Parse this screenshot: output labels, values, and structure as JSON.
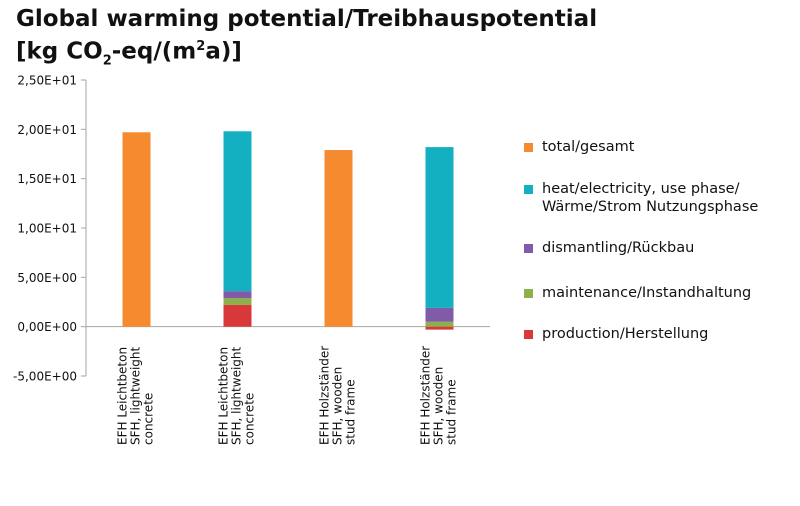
{
  "title": {
    "line1": "Global warming potential/Treibhauspotential",
    "line2_prefix": "[kg CO",
    "line2_sub": "2",
    "line2_mid": "-eq/(m",
    "line2_sup": "2",
    "line2_suffix": "a)]"
  },
  "chart_data": {
    "type": "bar",
    "stacked": true,
    "title": "Global warming potential/Treibhauspotential [kg CO2-eq/(m2a)]",
    "xlabel": "",
    "ylabel": "",
    "ylim": [
      -5,
      25
    ],
    "yticks": [
      -5,
      0,
      5,
      10,
      15,
      20,
      25
    ],
    "ytick_labels": [
      "-5,00E+00",
      "0,00E+00",
      "5,00E+00",
      "1,00E+01",
      "1,50E+01",
      "2,00E+01",
      "2,50E+01"
    ],
    "grid": false,
    "legend_position": "right",
    "categories": [
      [
        "EFH Leichtbeton",
        "SFH, lightweight",
        "concrete"
      ],
      [
        "EFH Leichtbeton",
        "SFH, lightweight",
        "concrete"
      ],
      [
        "EFH Holzständer",
        "SFH, wooden",
        "stud frame"
      ],
      [
        "EFH Holzständer",
        "SFH, wooden",
        "stud frame"
      ]
    ],
    "series": [
      {
        "name": "production/Herstellung",
        "color": "#d9383a",
        "values": [
          0,
          2.2,
          0,
          -0.3
        ]
      },
      {
        "name": "maintenance/Instandhaltung",
        "color": "#8db04a",
        "values": [
          0,
          0.7,
          0,
          0.5
        ]
      },
      {
        "name": "dismantling/Rückbau",
        "color": "#7f5ba8",
        "values": [
          0,
          0.7,
          0,
          1.4
        ]
      },
      {
        "name": "heat/electricity, use phase/ Wärme/Strom Nutzungsphase",
        "color": "#13b0c1",
        "values": [
          0,
          16.2,
          0,
          16.3
        ]
      },
      {
        "name": "total/gesamt",
        "color": "#f68a2f",
        "values": [
          19.7,
          0,
          17.9,
          0
        ]
      }
    ]
  },
  "legend": [
    {
      "label": "total/gesamt",
      "color": "#f68a2f"
    },
    {
      "label_line1": "heat/electricity, use phase/",
      "label_line2": "Wärme/Strom Nutzungsphase",
      "color": "#13b0c1"
    },
    {
      "label": "dismantling/Rückbau",
      "color": "#7f5ba8"
    },
    {
      "label": "maintenance/Instandhaltung",
      "color": "#8db04a"
    },
    {
      "label": "production/Herstellung",
      "color": "#d9383a"
    }
  ]
}
